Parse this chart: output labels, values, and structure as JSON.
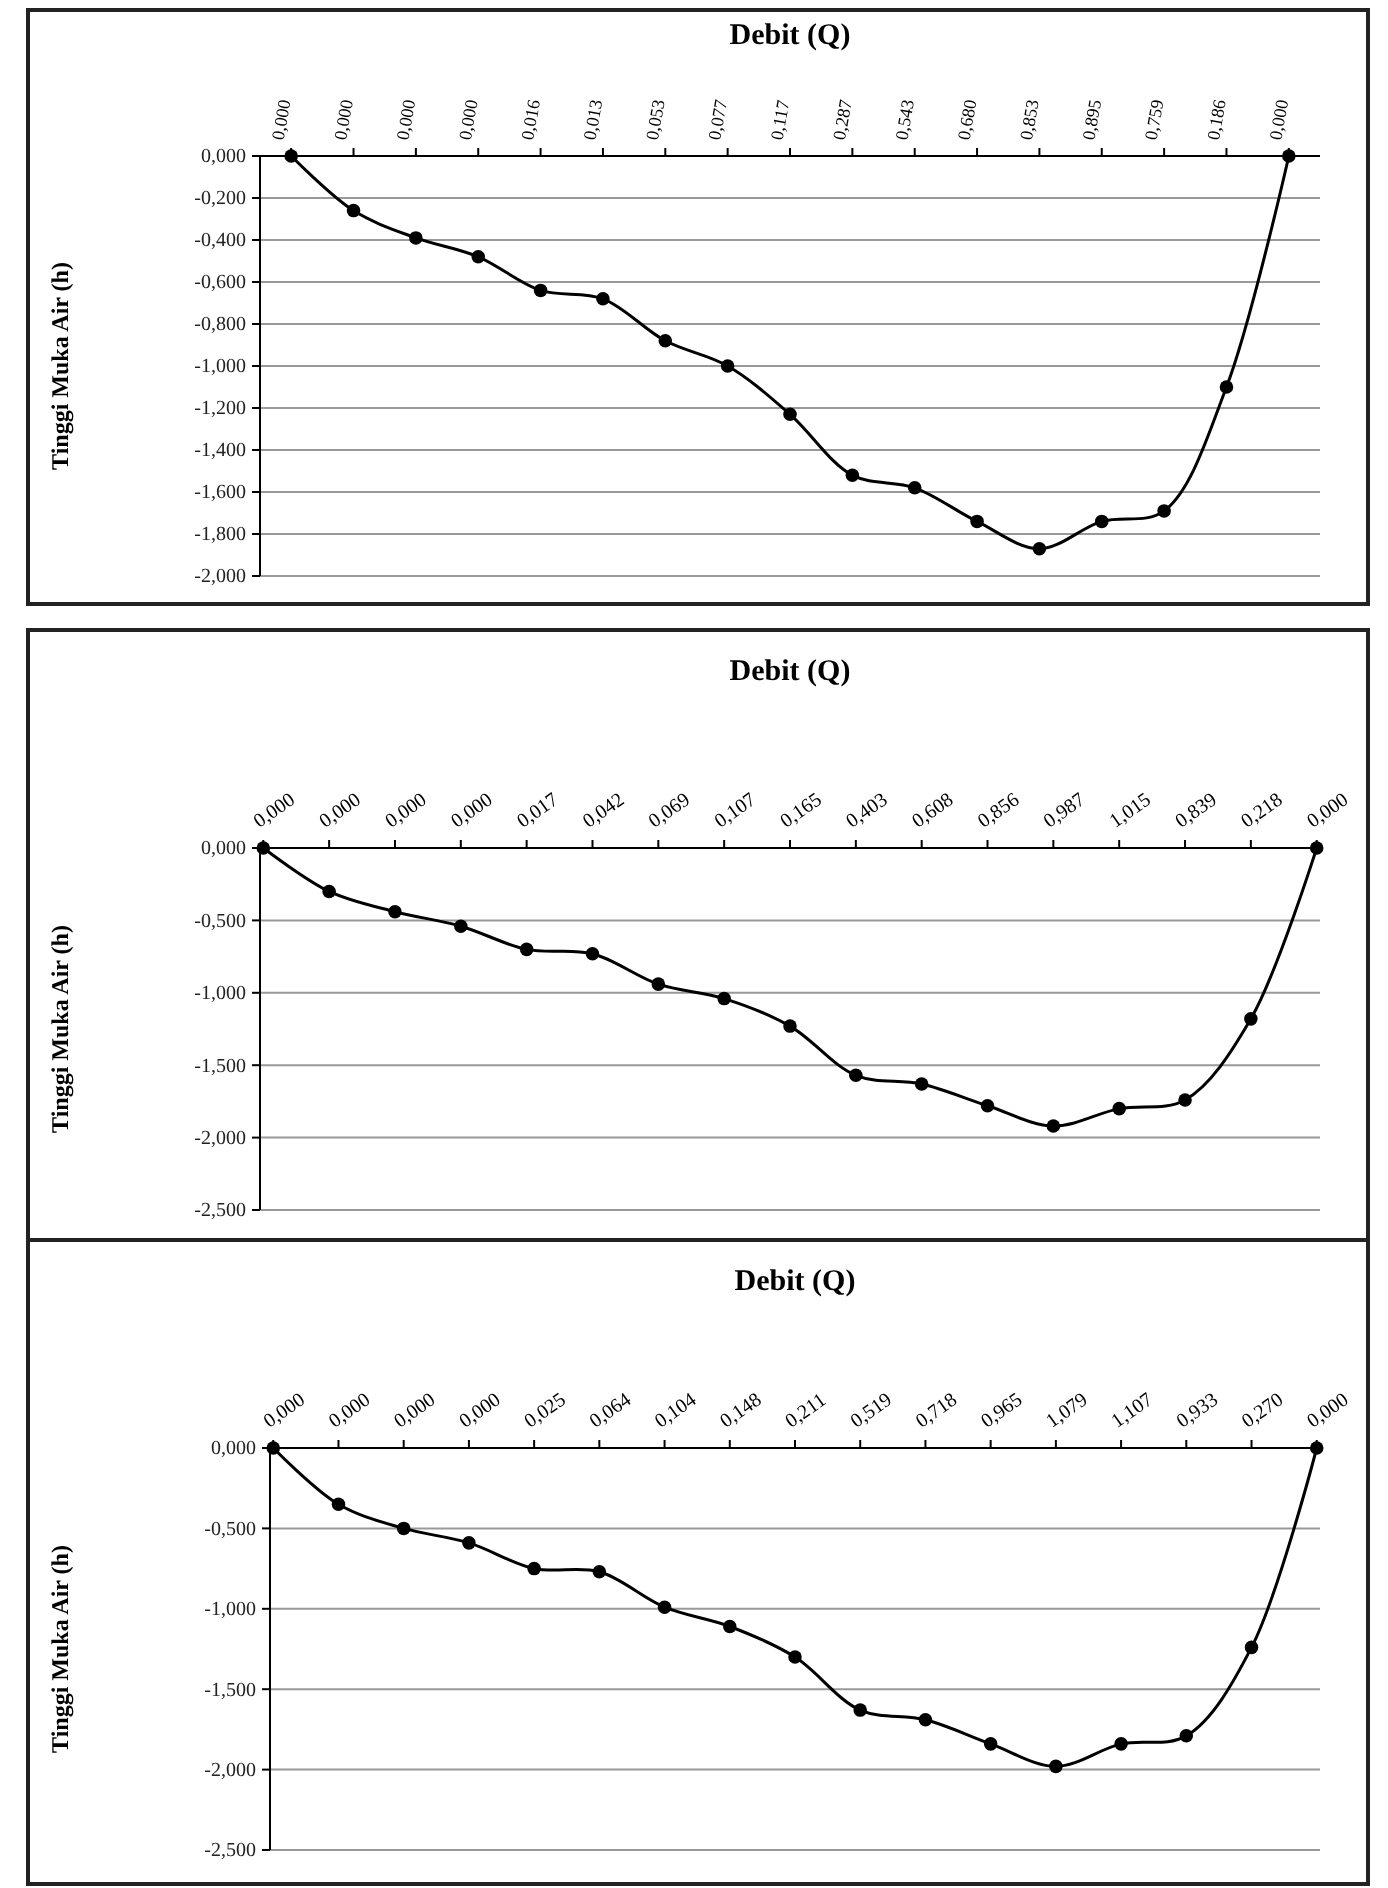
{
  "chart_data": [
    {
      "type": "line",
      "xlabel": "Debit (Q)",
      "ylabel": "Tinggi Muka Air (h)",
      "categories": [
        "0,000",
        "0,000",
        "0,000",
        "0,000",
        "0,016",
        "0,013",
        "0,053",
        "0,077",
        "0,117",
        "0,287",
        "0,543",
        "0,680",
        "0,853",
        "0,895",
        "0,759",
        "0,186",
        "0,000"
      ],
      "series": [
        {
          "color": "#000000",
          "values": [
            0,
            -0.26,
            -0.39,
            -0.48,
            -0.64,
            -0.68,
            -0.88,
            -1.0,
            -1.23,
            -1.52,
            -1.58,
            -1.74,
            -1.87,
            -1.74,
            -1.69,
            -1.1,
            0
          ]
        }
      ],
      "ylim": [
        -2,
        0
      ],
      "yticks": [
        {
          "value": 0,
          "label": "0,000"
        },
        {
          "value": -0.2,
          "label": "-0,200"
        },
        {
          "value": -0.4,
          "label": "-0,400"
        },
        {
          "value": -0.6,
          "label": "-0,600"
        },
        {
          "value": -0.8,
          "label": "-0,800"
        },
        {
          "value": -1,
          "label": "-1,000"
        },
        {
          "value": -1.2,
          "label": "-1,200"
        },
        {
          "value": -1.4,
          "label": "-1,400"
        },
        {
          "value": -1.6,
          "label": "-1,600"
        },
        {
          "value": -1.8,
          "label": "-1,800"
        },
        {
          "value": -2,
          "label": "-2,000"
        }
      ],
      "grid": "y",
      "marker": "circle",
      "line_style": "solid"
    },
    {
      "type": "line",
      "xlabel": "Debit (Q)",
      "ylabel": "Tinggi Muka Air (h)",
      "categories": [
        "0,000",
        "0,000",
        "0,000",
        "0,000",
        "0,017",
        "0,042",
        "0,069",
        "0,107",
        "0,165",
        "0,403",
        "0,608",
        "0,856",
        "0,987",
        "1,015",
        "0,839",
        "0,218",
        "0,000"
      ],
      "series": [
        {
          "color": "#000000",
          "values": [
            0,
            -0.3,
            -0.44,
            -0.54,
            -0.7,
            -0.73,
            -0.94,
            -1.04,
            -1.23,
            -1.57,
            -1.63,
            -1.78,
            -1.92,
            -1.8,
            -1.74,
            -1.18,
            0
          ]
        }
      ],
      "ylim": [
        -2.5,
        0
      ],
      "yticks": [
        {
          "value": 0,
          "label": "0,000"
        },
        {
          "value": -0.5,
          "label": "-0,500"
        },
        {
          "value": -1,
          "label": "-1,000"
        },
        {
          "value": -1.5,
          "label": "-1,500"
        },
        {
          "value": -2,
          "label": "-2,000"
        },
        {
          "value": -2.5,
          "label": "-2,500"
        }
      ],
      "grid": "y",
      "marker": "circle",
      "line_style": "solid"
    },
    {
      "type": "line",
      "xlabel": "Debit (Q)",
      "ylabel": "Tinggi Muka Air (h)",
      "categories": [
        "0,000",
        "0,000",
        "0,000",
        "0,000",
        "0,025",
        "0,064",
        "0,104",
        "0,148",
        "0,211",
        "0,519",
        "0,718",
        "0,965",
        "1,079",
        "1,107",
        "0,933",
        "0,270",
        "0,000"
      ],
      "series": [
        {
          "color": "#000000",
          "values": [
            0,
            -0.35,
            -0.5,
            -0.59,
            -0.75,
            -0.77,
            -0.99,
            -1.11,
            -1.3,
            -1.63,
            -1.69,
            -1.84,
            -1.98,
            -1.84,
            -1.79,
            -1.24,
            0
          ]
        }
      ],
      "ylim": [
        -2.5,
        0
      ],
      "yticks": [
        {
          "value": 0,
          "label": "0,000"
        },
        {
          "value": -0.5,
          "label": "-0,500"
        },
        {
          "value": -1,
          "label": "-1,000"
        },
        {
          "value": -1.5,
          "label": "-1,500"
        },
        {
          "value": -2,
          "label": "-2,000"
        },
        {
          "value": -2.5,
          "label": "-2,500"
        }
      ],
      "grid": "y",
      "marker": "circle",
      "line_style": "solid"
    }
  ]
}
